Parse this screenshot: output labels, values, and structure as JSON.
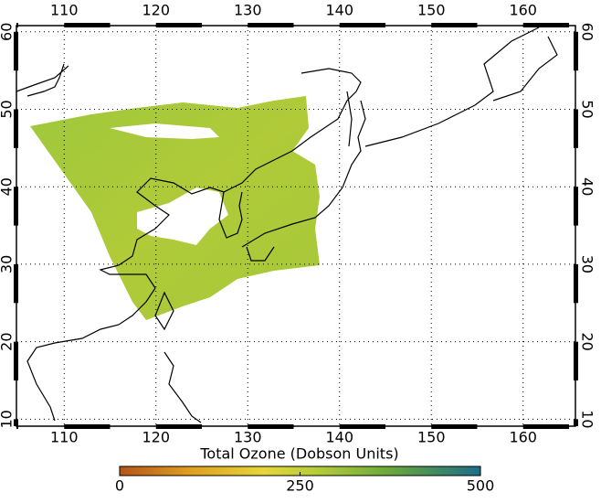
{
  "map": {
    "xlim": [
      104.8,
      165.7
    ],
    "ylim": [
      9.1,
      60.8
    ],
    "xticks": [
      110,
      120,
      130,
      140,
      150,
      160
    ],
    "yticks": [
      10,
      20,
      30,
      40,
      50,
      60
    ]
  },
  "colorbar": {
    "title": "Total Ozone (Dobson Units)",
    "lim": [
      0,
      500
    ],
    "ticks": [
      0,
      250,
      500
    ]
  }
}
